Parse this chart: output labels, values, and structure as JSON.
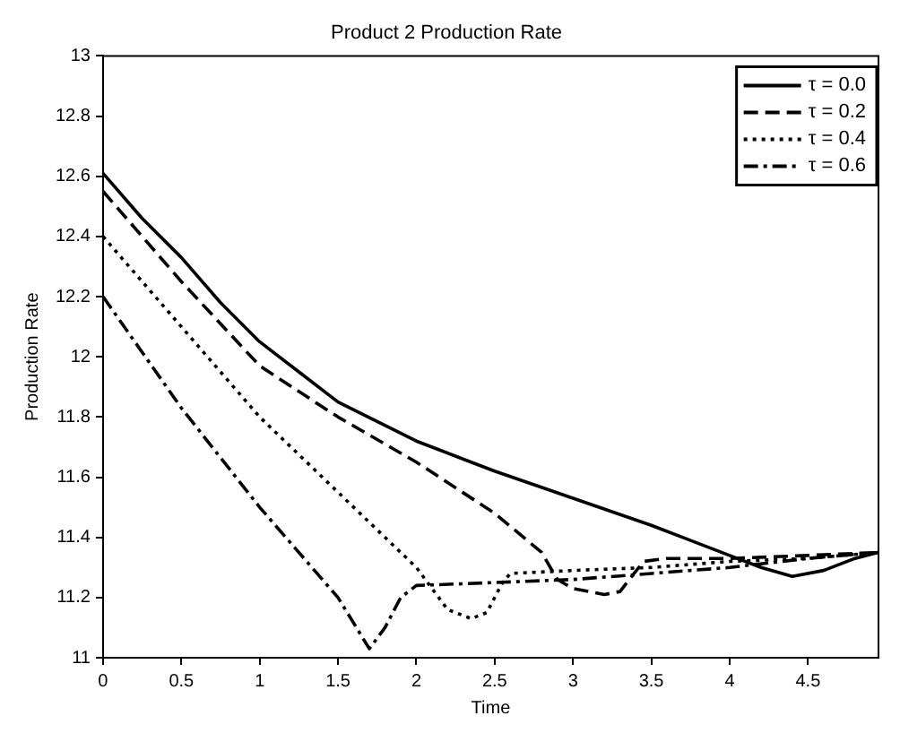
{
  "chart_data": {
    "type": "line",
    "title": "Product 2 Production Rate",
    "xlabel": "Time",
    "ylabel": "Production Rate",
    "xlim": [
      0,
      4.95
    ],
    "ylim": [
      11,
      13
    ],
    "xticks": [
      0,
      0.5,
      1,
      1.5,
      2,
      2.5,
      3,
      3.5,
      4,
      4.5
    ],
    "yticks": [
      11,
      11.2,
      11.4,
      11.6,
      11.8,
      12,
      12.2,
      12.4,
      12.6,
      12.8,
      13
    ],
    "grid": false,
    "legend": "top right",
    "series": [
      {
        "name": "τ = 0.0",
        "color": "#000000",
        "line_style": "solid",
        "x": [
          0,
          0.25,
          0.5,
          0.75,
          1,
          1.25,
          1.5,
          2,
          2.5,
          3,
          3.5,
          4,
          4.2,
          4.4,
          4.6,
          4.8,
          4.95
        ],
        "values": [
          12.61,
          12.46,
          12.33,
          12.18,
          12.05,
          11.95,
          11.85,
          11.72,
          11.62,
          11.53,
          11.44,
          11.34,
          11.3,
          11.27,
          11.29,
          11.33,
          11.35
        ]
      },
      {
        "name": "τ = 0.2",
        "color": "#000000",
        "line_style": "dashed",
        "x": [
          0,
          0.5,
          1,
          1.5,
          2,
          2.5,
          2.8,
          2.9,
          3,
          3.2,
          3.3,
          3.45,
          3.6,
          4,
          4.5,
          4.95
        ],
        "values": [
          12.55,
          12.25,
          11.97,
          11.8,
          11.65,
          11.48,
          11.35,
          11.26,
          11.23,
          11.21,
          11.22,
          11.32,
          11.33,
          11.33,
          11.34,
          11.35
        ]
      },
      {
        "name": "τ = 0.4",
        "color": "#000000",
        "line_style": "dotted",
        "x": [
          0,
          0.5,
          1,
          1.5,
          2,
          2.1,
          2.2,
          2.35,
          2.45,
          2.55,
          2.6,
          3,
          3.5,
          4,
          4.5,
          4.95
        ],
        "values": [
          12.4,
          12.1,
          11.8,
          11.55,
          11.3,
          11.23,
          11.16,
          11.13,
          11.15,
          11.25,
          11.28,
          11.29,
          11.3,
          11.32,
          11.33,
          11.35
        ]
      },
      {
        "name": "τ = 0.6",
        "color": "#000000",
        "line_style": "dashdot",
        "x": [
          0,
          0.5,
          1,
          1.5,
          1.7,
          1.8,
          1.9,
          2,
          2.5,
          3,
          3.5,
          4,
          4.5,
          4.95
        ],
        "values": [
          12.2,
          11.83,
          11.5,
          11.2,
          11.03,
          11.1,
          11.2,
          11.24,
          11.25,
          11.26,
          11.28,
          11.3,
          11.33,
          11.35
        ]
      }
    ]
  }
}
